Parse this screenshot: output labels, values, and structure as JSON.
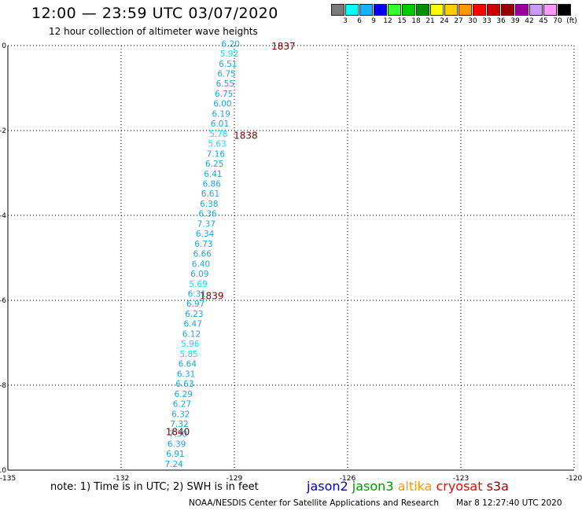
{
  "title": "12:00 — 23:59 UTC 03/07/2020",
  "subtitle": "12 hour collection of altimeter wave heights",
  "legend": {
    "colors": [
      "#7a7a7a",
      "#00ffff",
      "#1ab0ff",
      "#0000ee",
      "#33ff33",
      "#00cc00",
      "#009000",
      "#ffff00",
      "#ffcc00",
      "#ff9900",
      "#ff0000",
      "#cc0000",
      "#990000",
      "#990099",
      "#cc99ff",
      "#ff99ff",
      "#000000"
    ],
    "labels": [
      "3",
      "6",
      "9",
      "12",
      "15",
      "18",
      "21",
      "24",
      "27",
      "30",
      "33",
      "36",
      "39",
      "42",
      "45",
      "70",
      "(ft)"
    ]
  },
  "axes": {
    "lat_ticks": [
      "0",
      "-2",
      "-4",
      "-6",
      "-8",
      "-10"
    ],
    "lon_ticks": [
      "-135",
      "-132",
      "-129",
      "-126",
      "-123",
      "-120"
    ]
  },
  "track": {
    "values": [
      "6.20",
      "5.92",
      "6.51",
      "6.75",
      "6.55",
      "6.75",
      "6.00",
      "6.19",
      "6.01",
      "5.78",
      "5.63",
      "7.16",
      "6.25",
      "6.41",
      "6.86",
      "6.61",
      "6.38",
      "6.36",
      "7.37",
      "6.34",
      "6.73",
      "6.66",
      "6.40",
      "6.09",
      "5.69",
      "6.31",
      "6.97",
      "6.23",
      "6.47",
      "6.12",
      "5.96",
      "5.85",
      "6.64",
      "6.31",
      "6.63",
      "6.29",
      "6.27",
      "6.32",
      "7.32",
      "7.30",
      "6.39",
      "6.91",
      "7.24"
    ],
    "time_labels": [
      "1837",
      "1838",
      "1839",
      "1840"
    ]
  },
  "note": "note:  1) Time is in UTC;  2) SWH is in feet",
  "satellites": [
    {
      "name": "jason2",
      "color": "#0000cc"
    },
    {
      "name": "jason3",
      "color": "#009900"
    },
    {
      "name": "altika",
      "color": "#ff9900"
    },
    {
      "name": "cryosat",
      "color": "#ff0000"
    },
    {
      "name": "s3a",
      "color": "#990000"
    }
  ],
  "footer": "NOAA/NESDIS Center for Satellite Applications and Research",
  "timestamp": "Mar  8 12:27:40 UTC 2020"
}
